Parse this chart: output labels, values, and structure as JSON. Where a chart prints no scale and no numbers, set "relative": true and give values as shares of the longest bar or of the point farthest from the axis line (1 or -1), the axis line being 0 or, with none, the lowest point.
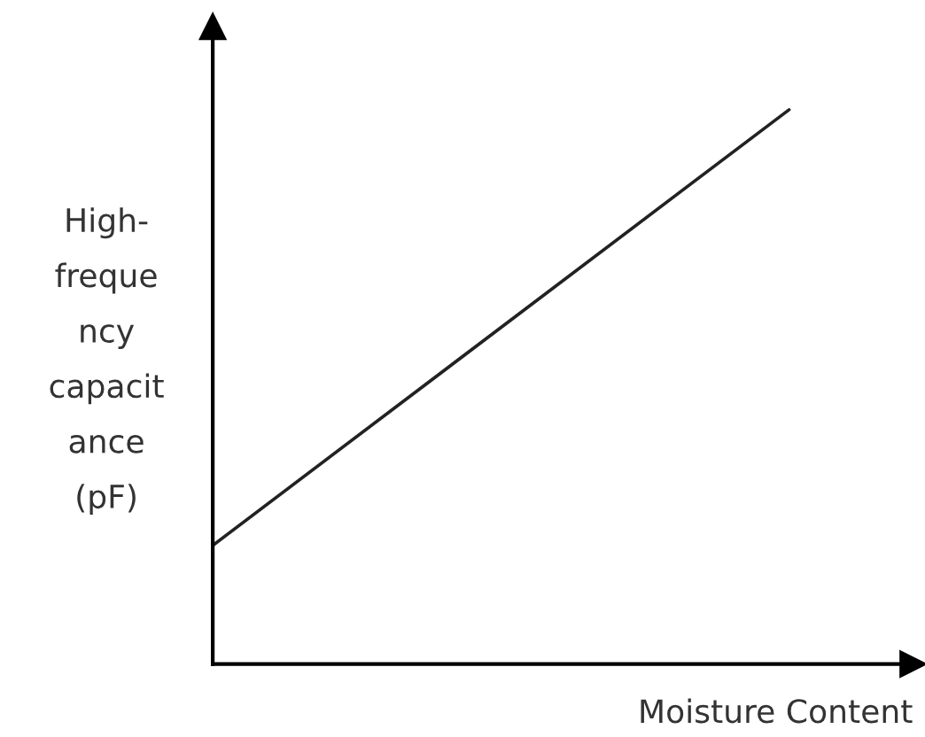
{
  "chart_data": {
    "type": "line",
    "relative": true,
    "xlabel": "Moisture Content",
    "ylabel": "High-\nfreque\nncy\ncapacit\nance\n(pF)",
    "categories": [
      null,
      null
    ],
    "series": [
      {
        "color": "#222222",
        "values": [
          0.214,
          1
        ]
      }
    ],
    "legend": false
  }
}
